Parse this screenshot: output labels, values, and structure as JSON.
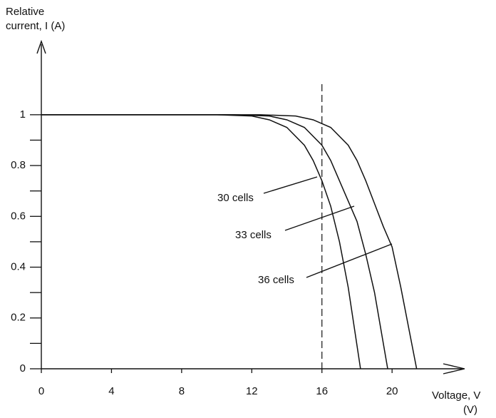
{
  "chart_data": {
    "type": "line",
    "y_label_line1": "Relative",
    "y_label_line2": "current, I (A)",
    "x_label_line1": "Voltage, V",
    "x_label_line2": "(V)",
    "xlim": [
      0,
      23
    ],
    "ylim": [
      0,
      1.3
    ],
    "xticks": [
      0,
      4,
      8,
      12,
      16,
      20
    ],
    "yticks": [
      0,
      0.2,
      0.4,
      0.6,
      0.8,
      1.0
    ],
    "yminorticks": [
      0.1,
      0.3,
      0.5,
      0.7,
      0.9
    ],
    "reference_line_x": 16,
    "series": [
      {
        "name": "30 cells",
        "color": "#111111",
        "x": [
          0,
          10,
          12,
          13,
          14,
          15,
          15.5,
          16,
          16.5,
          17,
          17.5,
          18.2
        ],
        "values": [
          1,
          1,
          0.995,
          0.98,
          0.95,
          0.88,
          0.82,
          0.74,
          0.64,
          0.5,
          0.32,
          0
        ]
      },
      {
        "name": "33 cells",
        "color": "#111111",
        "x": [
          0,
          11,
          13,
          14,
          15,
          16,
          16.5,
          17,
          17.5,
          18,
          18.5,
          19,
          19.75
        ],
        "values": [
          1,
          1,
          0.995,
          0.98,
          0.95,
          0.88,
          0.82,
          0.74,
          0.66,
          0.58,
          0.45,
          0.3,
          0
        ]
      },
      {
        "name": "36 cells",
        "color": "#111111",
        "x": [
          0,
          12.5,
          14.5,
          15.5,
          16.5,
          17.5,
          18,
          18.5,
          19,
          19.5,
          20,
          20.5,
          21.4
        ],
        "values": [
          1,
          1,
          0.995,
          0.98,
          0.95,
          0.88,
          0.82,
          0.74,
          0.65,
          0.56,
          0.48,
          0.32,
          0
        ]
      }
    ]
  }
}
